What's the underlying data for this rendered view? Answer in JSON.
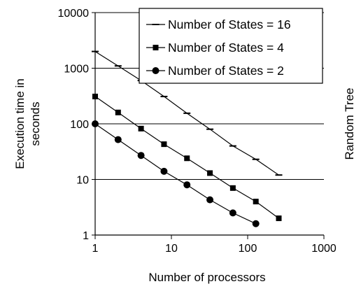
{
  "chart_data": {
    "type": "line",
    "x_scale": "log",
    "y_scale": "log",
    "xlim": [
      1,
      1000
    ],
    "ylim": [
      1,
      10000
    ],
    "x_ticks": [
      "1",
      "10",
      "100",
      "1000"
    ],
    "y_ticks": [
      "1",
      "10",
      "100",
      "1000",
      "10000"
    ],
    "xlabel": "Number of processors",
    "ylabel_line1": "Execution time in",
    "ylabel_line2": "seconds",
    "right_label": "Random Tree",
    "grid": "horizontal",
    "legend_position": "top-right",
    "series": [
      {
        "name": "Number of States = 16",
        "marker": "dash",
        "x": [
          1,
          2,
          4,
          8,
          16,
          32,
          64,
          128,
          256
        ],
        "y": [
          2000,
          1100,
          600,
          310,
          155,
          80,
          40,
          23,
          12
        ]
      },
      {
        "name": "Number of States = 4",
        "marker": "square",
        "x": [
          1,
          2,
          4,
          8,
          16,
          32,
          64,
          128,
          256
        ],
        "y": [
          310,
          160,
          82,
          43,
          24,
          13,
          7,
          4,
          2
        ]
      },
      {
        "name": "Number of States = 2",
        "marker": "circle",
        "x": [
          1,
          2,
          4,
          8,
          16,
          32,
          64,
          128
        ],
        "y": [
          100,
          52,
          27,
          14,
          8,
          4.3,
          2.5,
          1.6
        ]
      }
    ]
  }
}
